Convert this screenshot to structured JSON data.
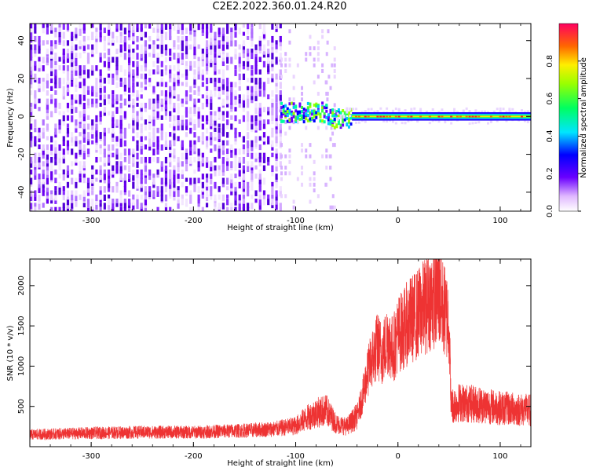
{
  "title": "C2E2.2022.360.01.24.R20",
  "chart_data": [
    {
      "type": "heatmap",
      "xlabel": "Height of straight line (km)",
      "ylabel": "Frequency (Hz)",
      "xlim": [
        -360,
        130
      ],
      "ylim": [
        -50,
        49
      ],
      "xticks": [
        -300,
        -200,
        -100,
        0,
        100
      ],
      "yticks": [
        -40,
        -20,
        0,
        20,
        40
      ],
      "colorbar": {
        "label": "Normalized spectral amplitude",
        "range": [
          0.0,
          1.0
        ],
        "ticks": [
          "0.0",
          "0.2",
          "0.4",
          "0.6",
          "0.8"
        ]
      },
      "regions": [
        {
          "x_range": [
            -360,
            -115
          ],
          "description_values": {
            "amplitude": [
              0.05,
              0.25
            ],
            "freq_range": [
              -50,
              49
            ]
          }
        },
        {
          "x_range": [
            -115,
            -62
          ],
          "freq_center": 2,
          "amplitude": [
            0.3,
            0.6
          ]
        },
        {
          "x_range": [
            -62,
            130
          ],
          "freq_center": 0,
          "amplitude": [
            0.8,
            1.0
          ]
        }
      ]
    },
    {
      "type": "line",
      "xlabel": "Height of straight line (km)",
      "ylabel": "SNR (10 * v/v)",
      "xlim": [
        -360,
        130
      ],
      "ylim": [
        0,
        2330
      ],
      "xticks": [
        -300,
        -200,
        -100,
        0,
        100
      ],
      "yticks": [
        500,
        1000,
        1500,
        2000
      ],
      "series": [
        {
          "color": "#ee3333",
          "x": [
            -360,
            -300,
            -250,
            -200,
            -150,
            -120,
            -100,
            -90,
            -80,
            -70,
            -60,
            -50,
            -40,
            -35,
            -30,
            -25,
            -20,
            -15,
            -10,
            -5,
            0,
            5,
            10,
            20,
            30,
            40,
            45,
            50,
            52,
            60,
            80,
            100,
            130
          ],
          "y": [
            150,
            170,
            180,
            180,
            200,
            220,
            260,
            350,
            420,
            450,
            280,
            250,
            380,
            600,
            900,
            1100,
            1250,
            1150,
            1350,
            1200,
            1400,
            1450,
            1550,
            1650,
            1800,
            1900,
            1700,
            1550,
            500,
            550,
            520,
            480,
            450
          ]
        }
      ]
    }
  ]
}
